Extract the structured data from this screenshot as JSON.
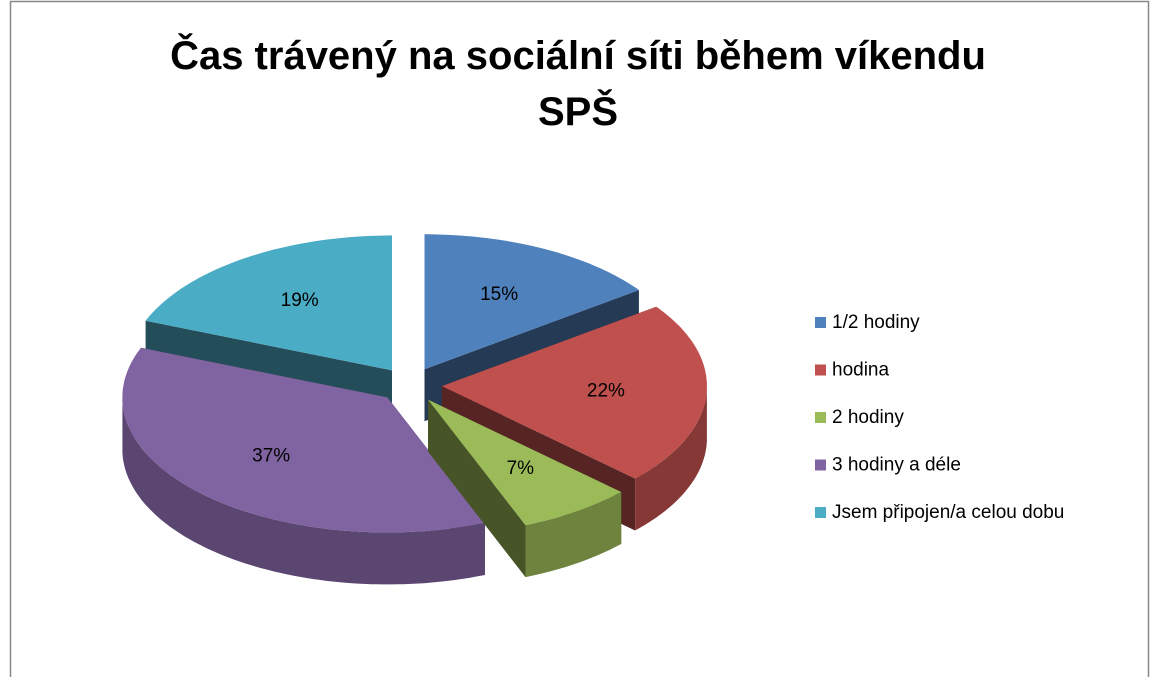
{
  "chart_data": {
    "type": "pie3d",
    "title": "Čas trávený na sociální síti během víkendu SPŠ",
    "categories": [
      "1/2 hodiny",
      "hodina",
      "2 hodiny",
      "3 hodiny a déle",
      "Jsem připojen/a celou dobu"
    ],
    "values": [
      15,
      22,
      7,
      37,
      19
    ],
    "value_labels": [
      "15%",
      "22%",
      "7%",
      "37%",
      "19%"
    ],
    "colors": [
      "#4f81bd",
      "#c0504d",
      "#9bbb59",
      "#8064a2",
      "#4bacc6"
    ],
    "legend": "right"
  }
}
